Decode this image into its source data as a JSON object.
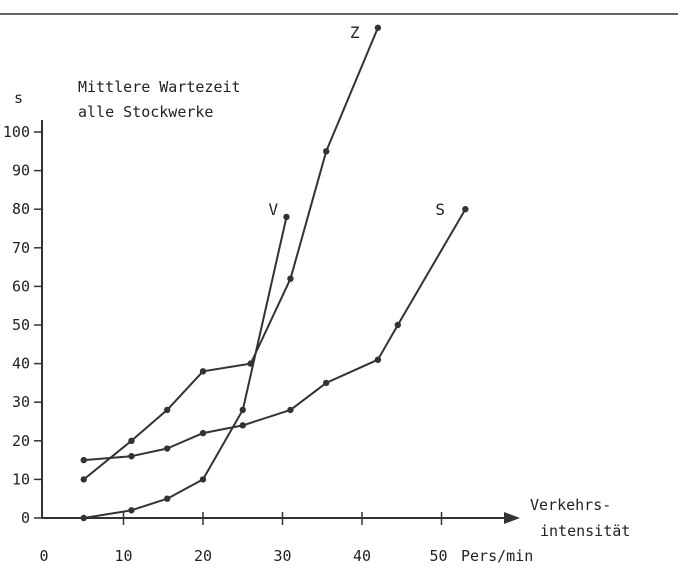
{
  "chart_data": {
    "type": "line",
    "title": [
      "Mittlere Wartezeit",
      "alle Stockwerke"
    ],
    "ylabel": "s",
    "xlabel": [
      "Verkehrs-",
      "intensität"
    ],
    "x_unit_label": "Pers/min",
    "xlim": [
      0,
      60
    ],
    "ylim": [
      0,
      115
    ],
    "x_ticks": [
      0,
      10,
      20,
      30,
      40,
      50
    ],
    "y_ticks": [
      0,
      10,
      20,
      30,
      40,
      50,
      60,
      70,
      80,
      90,
      100
    ],
    "grid": false,
    "series": [
      {
        "name": "V",
        "x": [
          5,
          11,
          15.5,
          20,
          25,
          30.5
        ],
        "y": [
          0,
          2,
          5,
          10,
          28,
          78
        ]
      },
      {
        "name": "Z",
        "x": [
          5,
          11,
          15.5,
          20,
          26,
          31,
          35.5,
          42
        ],
        "y": [
          10,
          20,
          28,
          38,
          40,
          62,
          95,
          127
        ]
      },
      {
        "name": "S",
        "x": [
          5,
          11,
          15.5,
          20,
          25,
          31,
          35.5,
          42,
          44.5,
          53
        ],
        "y": [
          15,
          16,
          18,
          22,
          24,
          28,
          35,
          41,
          50,
          80
        ]
      }
    ]
  }
}
